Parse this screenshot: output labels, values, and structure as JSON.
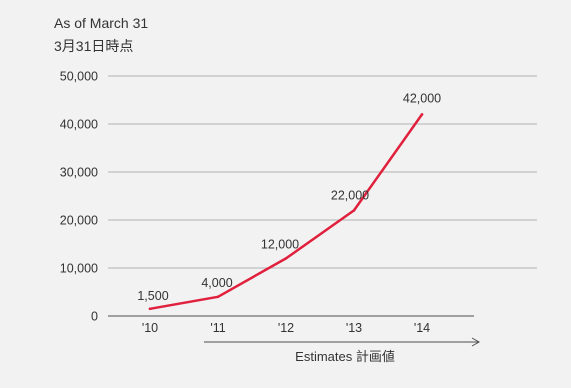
{
  "chart_data": {
    "type": "line",
    "header_lines": [
      "As of March 31",
      "3月31日時点"
    ],
    "categories": [
      "'10",
      "'11",
      "'12",
      "'13",
      "'14"
    ],
    "series": [
      {
        "values": [
          1500,
          4000,
          12000,
          22000,
          42000
        ]
      }
    ],
    "data_labels": [
      "1,500",
      "4,000",
      "12,000",
      "22,000",
      "42,000"
    ],
    "yticks": [
      0,
      10000,
      20000,
      30000,
      40000,
      50000
    ],
    "ytick_labels": [
      "0",
      "10,000",
      "20,000",
      "30,000",
      "40,000",
      "50,000"
    ],
    "ylim": [
      0,
      50000
    ],
    "grid": true,
    "annotation": {
      "text": "Estimates  計画値",
      "from_category": "'11",
      "to_category": "'14"
    }
  },
  "colors": {
    "line": "#e0203c",
    "grid": "#b3b3b3",
    "axis": "#4d4d4d",
    "text": "#333333",
    "background": "#f2f2f2"
  }
}
